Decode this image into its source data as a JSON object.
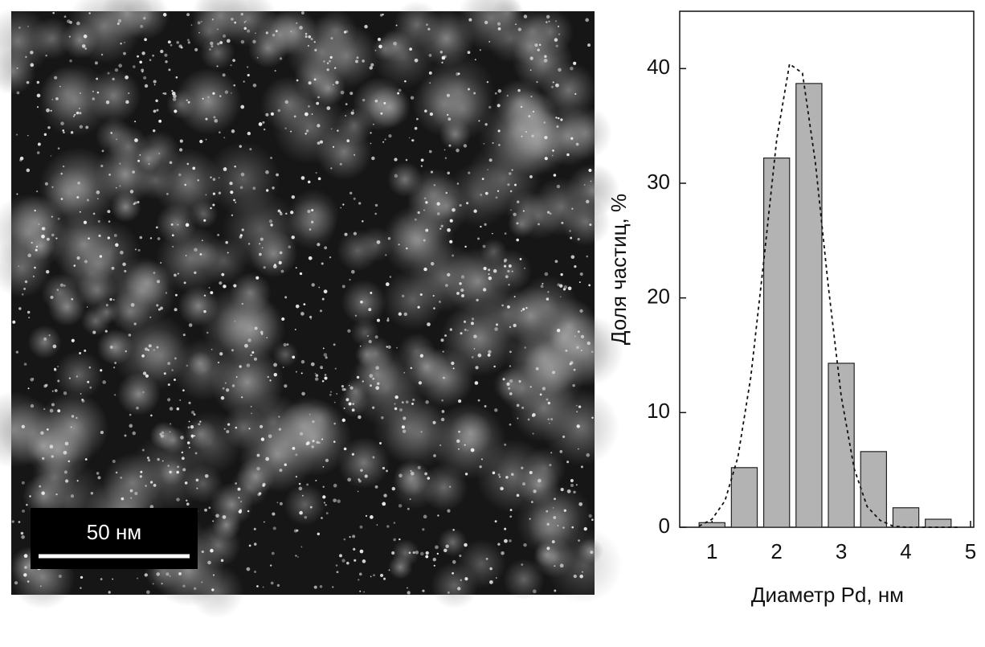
{
  "image": {
    "scale_bar_label": "50 нм"
  },
  "chart_data": {
    "type": "histogram",
    "x_label": "Диаметр Pd, нм",
    "y_label": "Доля частиц, %",
    "bins": [
      0.75,
      1.25,
      1.75,
      2.25,
      2.75,
      3.25,
      3.75,
      4.25,
      4.75
    ],
    "values": [
      0.4,
      5.2,
      32.2,
      38.7,
      14.3,
      6.6,
      1.7,
      0.7
    ],
    "color": "#b3b3b3",
    "fit": {
      "x": [
        0.8,
        1.0,
        1.2,
        1.4,
        1.6,
        1.8,
        2.0,
        2.2,
        2.4,
        2.6,
        2.8,
        3.0,
        3.2,
        3.4,
        3.6,
        3.8,
        4.0,
        4.2,
        4.4,
        4.6,
        4.8
      ],
      "values": [
        0.1,
        0.7,
        2.3,
        6.1,
        13.1,
        23.2,
        33.8,
        40.4,
        39.6,
        31.8,
        21.0,
        11.4,
        5.1,
        1.8,
        0.6,
        0.1,
        0,
        0,
        0,
        0,
        0
      ],
      "color": "#111111"
    },
    "xlim": [
      0.5,
      5.05
    ],
    "xticks": [
      1,
      2,
      3,
      4,
      5
    ],
    "ylim": [
      0,
      45
    ],
    "yticks": [
      0,
      10,
      20,
      30,
      40
    ]
  }
}
